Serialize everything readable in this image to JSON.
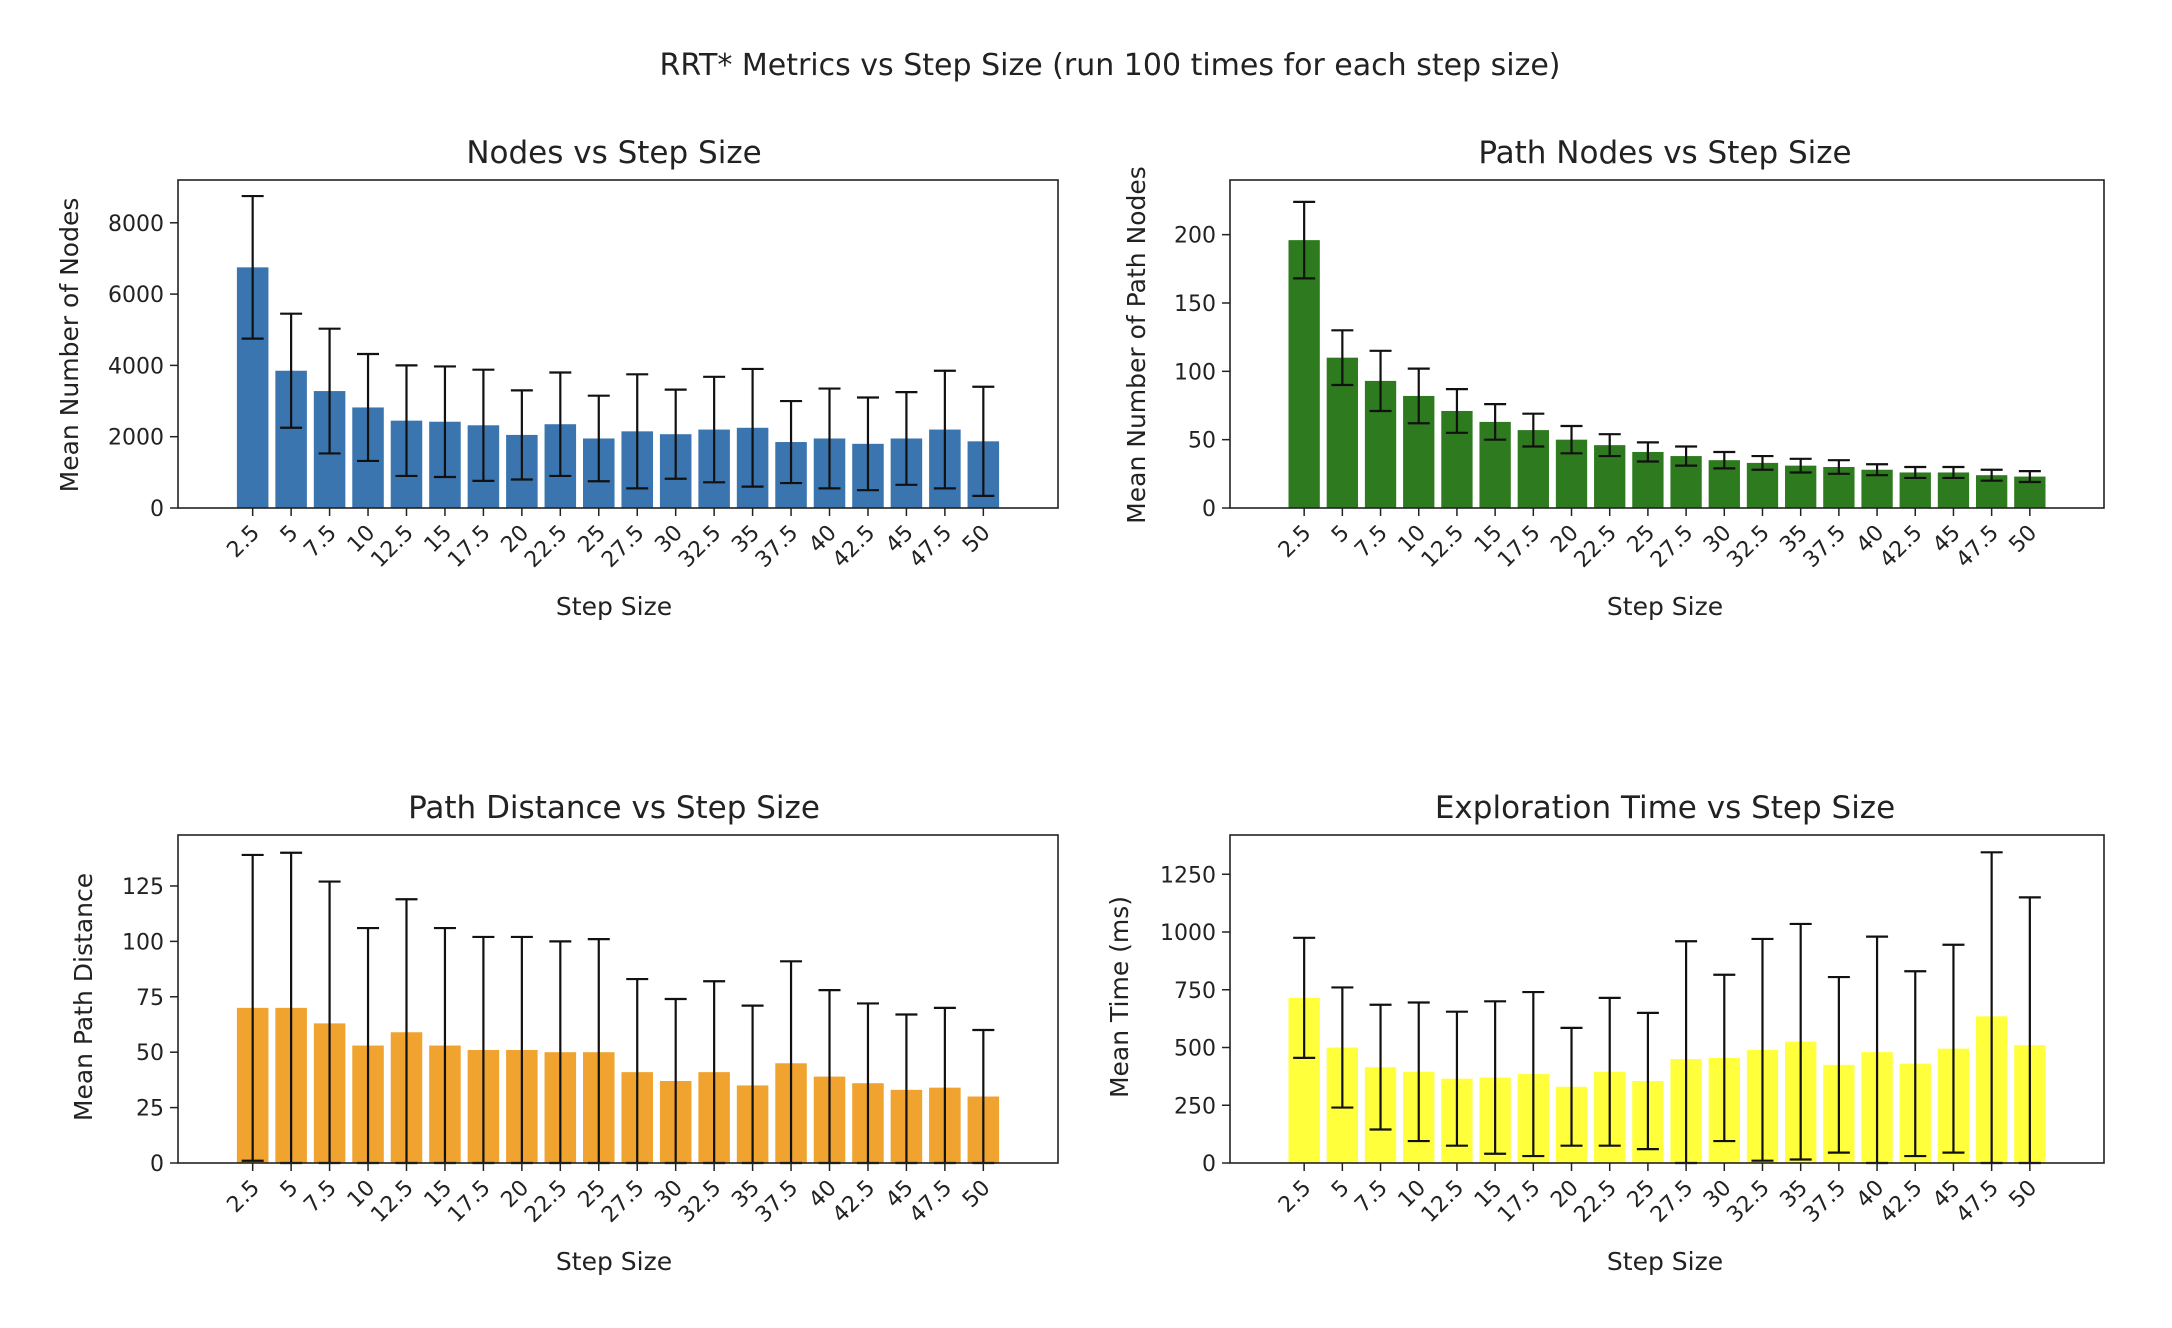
{
  "figure": {
    "suptitle": "RRT* Metrics vs Step Size (run 100 times for each step size)"
  },
  "chart_data": [
    {
      "type": "bar",
      "title": "Nodes vs Step Size",
      "xlabel": "Step Size",
      "ylabel": "Mean Number of Nodes",
      "color": "#3b75af",
      "ylim": [
        0,
        9200
      ],
      "yticks": [
        0,
        2000,
        4000,
        6000,
        8000
      ],
      "categories": [
        "2.5",
        "5",
        "7.5",
        "10",
        "12.5",
        "15",
        "17.5",
        "20",
        "22.5",
        "25",
        "27.5",
        "30",
        "32.5",
        "35",
        "37.5",
        "40",
        "42.5",
        "45",
        "47.5",
        "50"
      ],
      "values": [
        6750,
        3850,
        3280,
        2820,
        2450,
        2420,
        2320,
        2050,
        2350,
        1950,
        2150,
        2070,
        2200,
        2250,
        1850,
        1950,
        1800,
        1950,
        2200,
        1870
      ],
      "errors": [
        2000,
        1600,
        1750,
        1500,
        1550,
        1550,
        1560,
        1250,
        1450,
        1200,
        1600,
        1250,
        1480,
        1650,
        1150,
        1400,
        1300,
        1300,
        1650,
        1530
      ]
    },
    {
      "type": "bar",
      "title": "Path Nodes vs Step Size",
      "xlabel": "Step Size",
      "ylabel": "Mean Number of Path Nodes",
      "color": "#2e7a1e",
      "ylim": [
        0,
        240
      ],
      "yticks": [
        0,
        50,
        100,
        150,
        200
      ],
      "categories": [
        "2.5",
        "5",
        "7.5",
        "10",
        "12.5",
        "15",
        "17.5",
        "20",
        "22.5",
        "25",
        "27.5",
        "30",
        "32.5",
        "35",
        "37.5",
        "40",
        "42.5",
        "45",
        "47.5",
        "50"
      ],
      "values": [
        196,
        110,
        93,
        82,
        71,
        63,
        57,
        50,
        46,
        41,
        38,
        35,
        33,
        31,
        30,
        28,
        26,
        26,
        24,
        23
      ],
      "errors": [
        28,
        20,
        22,
        20,
        16,
        13,
        12,
        10,
        8,
        7,
        7,
        6,
        5,
        5,
        5,
        4,
        4,
        4,
        4,
        4
      ]
    },
    {
      "type": "bar",
      "title": "Path Distance vs Step Size",
      "xlabel": "Step Size",
      "ylabel": "Mean Path Distance",
      "color": "#f0a32e",
      "ylim": [
        0,
        148
      ],
      "yticks": [
        0,
        25,
        50,
        75,
        100,
        125
      ],
      "categories": [
        "2.5",
        "5",
        "7.5",
        "10",
        "12.5",
        "15",
        "17.5",
        "20",
        "22.5",
        "25",
        "27.5",
        "30",
        "32.5",
        "35",
        "37.5",
        "40",
        "42.5",
        "45",
        "47.5",
        "50"
      ],
      "values": [
        70,
        70,
        63,
        53,
        59,
        53,
        51,
        51,
        50,
        50,
        41,
        37,
        41,
        35,
        45,
        39,
        36,
        33,
        34,
        30
      ],
      "errors": [
        69,
        70,
        64,
        53,
        60,
        53,
        51,
        51,
        50,
        51,
        42,
        37,
        41,
        36,
        46,
        39,
        36,
        34,
        36,
        30
      ]
    },
    {
      "type": "bar",
      "title": "Exploration Time vs Step Size",
      "xlabel": "Step Size",
      "ylabel": "Mean Time (ms)",
      "color": "#ffff3c",
      "ylim": [
        0,
        1420
      ],
      "yticks": [
        0,
        250,
        500,
        750,
        1000,
        1250
      ],
      "categories": [
        "2.5",
        "5",
        "7.5",
        "10",
        "12.5",
        "15",
        "17.5",
        "20",
        "22.5",
        "25",
        "27.5",
        "30",
        "32.5",
        "35",
        "37.5",
        "40",
        "42.5",
        "45",
        "47.5",
        "50"
      ],
      "values": [
        715,
        500,
        415,
        395,
        365,
        370,
        385,
        330,
        395,
        355,
        450,
        455,
        490,
        525,
        425,
        480,
        430,
        495,
        635,
        510
      ],
      "errors": [
        260,
        260,
        270,
        300,
        290,
        330,
        355,
        255,
        320,
        295,
        510,
        360,
        480,
        510,
        380,
        500,
        400,
        450,
        710,
        640
      ]
    }
  ]
}
